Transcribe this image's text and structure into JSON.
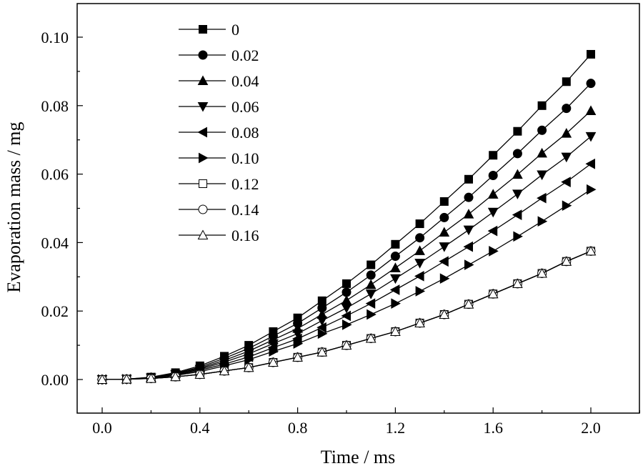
{
  "chart_data": {
    "type": "line",
    "title": "",
    "xlabel": "Time / ms",
    "ylabel": "Evaporation mass / mg",
    "xlim": [
      -0.1,
      2.2
    ],
    "ylim": [
      -0.01,
      0.11
    ],
    "grid": false,
    "legend_position": "top-left",
    "xticks": [
      "0.0",
      "0.4",
      "0.8",
      "1.2",
      "1.6",
      "2.0"
    ],
    "xtick_values": [
      0,
      0.4,
      0.8,
      1.2,
      1.6,
      2.0
    ],
    "yticks": [
      "0.00",
      "0.02",
      "0.04",
      "0.06",
      "0.08",
      "0.10"
    ],
    "ytick_values": [
      0,
      0.02,
      0.04,
      0.06,
      0.08,
      0.1
    ],
    "x": [
      0,
      0.1,
      0.2,
      0.3,
      0.4,
      0.5,
      0.6,
      0.7,
      0.8,
      0.9,
      1.0,
      1.1,
      1.2,
      1.3,
      1.4,
      1.5,
      1.6,
      1.7,
      1.8,
      1.9,
      2.0
    ],
    "series": [
      {
        "name": "0",
        "marker": "square",
        "filled": true,
        "values": [
          0,
          0.0001,
          0.0007,
          0.002,
          0.004,
          0.0068,
          0.01,
          0.014,
          0.018,
          0.023,
          0.028,
          0.0335,
          0.0395,
          0.0455,
          0.052,
          0.0585,
          0.0655,
          0.0725,
          0.08,
          0.087,
          0.095
        ]
      },
      {
        "name": "0.02",
        "marker": "circle",
        "filled": true,
        "values": [
          0,
          0.0001,
          0.0006,
          0.0018,
          0.0036,
          0.0062,
          0.0091,
          0.0127,
          0.0164,
          0.0209,
          0.0255,
          0.0305,
          0.036,
          0.0414,
          0.0473,
          0.0532,
          0.0596,
          0.066,
          0.0728,
          0.0792,
          0.0865
        ]
      },
      {
        "name": "0.04",
        "marker": "triangle-up",
        "filled": true,
        "values": [
          0,
          0.0001,
          0.0006,
          0.0017,
          0.0033,
          0.0056,
          0.0083,
          0.0116,
          0.0149,
          0.019,
          0.0231,
          0.0277,
          0.0326,
          0.0376,
          0.043,
          0.0483,
          0.0541,
          0.0599,
          0.0661,
          0.0719,
          0.0785
        ]
      },
      {
        "name": "0.06",
        "marker": "triangle-down",
        "filled": true,
        "values": [
          0,
          0.0001,
          0.0005,
          0.0015,
          0.003,
          0.0051,
          0.0075,
          0.0105,
          0.0134,
          0.0172,
          0.0209,
          0.025,
          0.0295,
          0.034,
          0.0388,
          0.0437,
          0.0489,
          0.0542,
          0.0598,
          0.065,
          0.071
        ]
      },
      {
        "name": "0.08",
        "marker": "triangle-left",
        "filled": true,
        "values": [
          0,
          0.0001,
          0.0005,
          0.0013,
          0.0027,
          0.0045,
          0.0066,
          0.0093,
          0.0119,
          0.0152,
          0.0186,
          0.0222,
          0.0262,
          0.0302,
          0.0345,
          0.0388,
          0.0434,
          0.0481,
          0.053,
          0.0577,
          0.063
        ]
      },
      {
        "name": "0.10",
        "marker": "triangle-right",
        "filled": true,
        "values": [
          0,
          0.0001,
          0.0004,
          0.0012,
          0.0023,
          0.004,
          0.0058,
          0.0082,
          0.0105,
          0.0134,
          0.016,
          0.019,
          0.0222,
          0.0258,
          0.0295,
          0.0335,
          0.0375,
          0.0418,
          0.0462,
          0.0508,
          0.0555
        ]
      },
      {
        "name": "0.12",
        "marker": "square",
        "filled": false,
        "values": [
          0,
          0.0001,
          0.0003,
          0.0008,
          0.0015,
          0.0025,
          0.0035,
          0.005,
          0.0065,
          0.008,
          0.01,
          0.012,
          0.014,
          0.0165,
          0.019,
          0.022,
          0.025,
          0.028,
          0.031,
          0.0345,
          0.0375
        ]
      },
      {
        "name": "0.14",
        "marker": "circle",
        "filled": false,
        "values": [
          0,
          0.0001,
          0.0003,
          0.0008,
          0.0015,
          0.0025,
          0.0035,
          0.005,
          0.0065,
          0.008,
          0.01,
          0.012,
          0.014,
          0.0165,
          0.019,
          0.022,
          0.025,
          0.028,
          0.031,
          0.0345,
          0.0375
        ]
      },
      {
        "name": "0.16",
        "marker": "triangle-up",
        "filled": false,
        "values": [
          0,
          0.0001,
          0.0003,
          0.0008,
          0.0015,
          0.0025,
          0.0035,
          0.005,
          0.0065,
          0.008,
          0.01,
          0.012,
          0.014,
          0.0165,
          0.019,
          0.022,
          0.025,
          0.028,
          0.031,
          0.0345,
          0.0375
        ]
      }
    ]
  }
}
